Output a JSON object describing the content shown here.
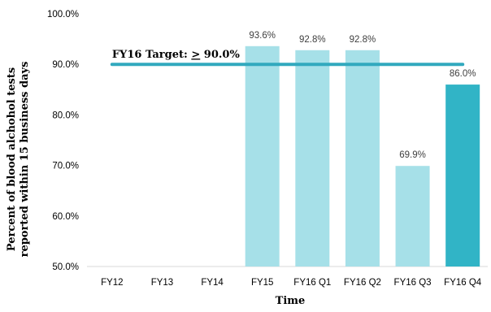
{
  "chart_data": {
    "type": "bar",
    "xlabel": "Time",
    "ylabel_lines": [
      "Percent of blood alchohol tests",
      "reported within 15 business days"
    ],
    "ylim": [
      50,
      100
    ],
    "y_ticks": [
      50,
      60,
      70,
      80,
      90,
      100
    ],
    "y_tick_labels": [
      "50.0%",
      "60.0%",
      "70.0%",
      "80.0%",
      "90.0%",
      "100.0%"
    ],
    "categories": [
      "FY12",
      "FY13",
      "FY14",
      "FY15",
      "FY16 Q1",
      "FY16 Q2",
      "FY16 Q3",
      "FY16 Q4"
    ],
    "values": [
      null,
      null,
      null,
      93.6,
      92.8,
      92.8,
      69.9,
      86.0
    ],
    "value_labels": [
      "",
      "",
      "",
      "93.6%",
      "92.8%",
      "92.8%",
      "69.9%",
      "86.0%"
    ],
    "bar_colors": [
      "#a6e0e8",
      "#a6e0e8",
      "#a6e0e8",
      "#a6e0e8",
      "#a6e0e8",
      "#a6e0e8",
      "#a6e0e8",
      "#31b4c6"
    ],
    "target": {
      "value": 90,
      "label_prefix": "FY16 Target: ",
      "label_value": "> 90.0%",
      "color": "#31a9be",
      "start_category": "FY12",
      "end_category": "FY16 Q4"
    },
    "grid": false,
    "legend": "none"
  }
}
